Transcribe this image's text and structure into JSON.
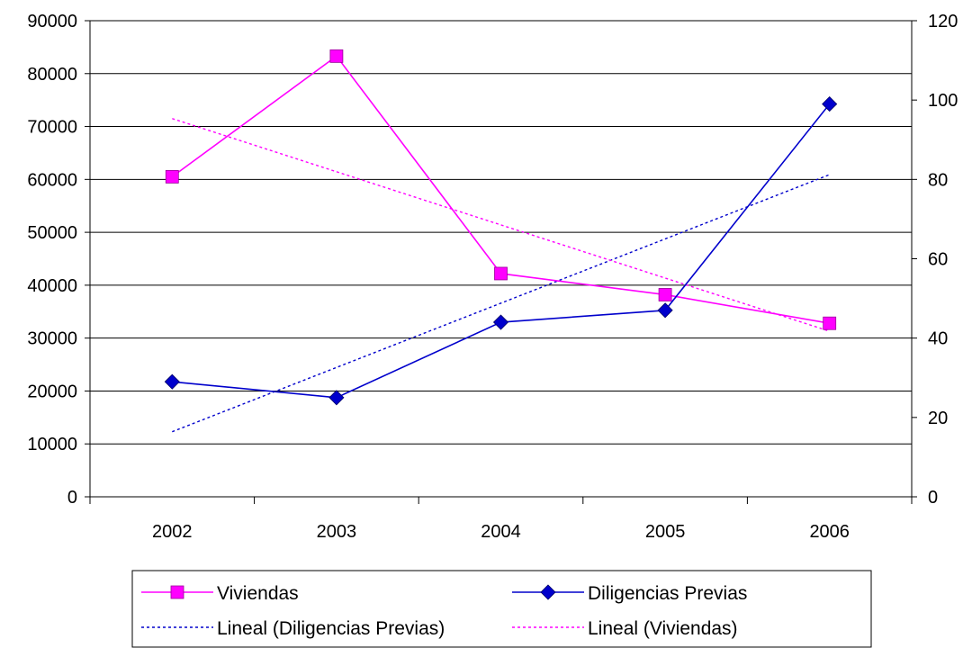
{
  "chart_data": {
    "type": "line",
    "categories": [
      "2002",
      "2003",
      "2004",
      "2005",
      "2006"
    ],
    "y_left": {
      "min": 0,
      "max": 90000,
      "step": 10000,
      "ticks": [
        "0",
        "10000",
        "20000",
        "30000",
        "40000",
        "50000",
        "60000",
        "70000",
        "80000",
        "90000"
      ]
    },
    "y_right": {
      "min": 0,
      "max": 120,
      "step": 20,
      "ticks": [
        "0",
        "20",
        "40",
        "60",
        "80",
        "100",
        "120"
      ]
    },
    "grid": true,
    "legend_position": "bottom",
    "series": [
      {
        "name": "Viviendas",
        "axis": "left",
        "marker": "square",
        "color": "#FF00FF",
        "values": [
          60500,
          83300,
          42200,
          38200,
          32800
        ]
      },
      {
        "name": "Diligencias Previas",
        "axis": "right",
        "marker": "diamond",
        "color": "#0000CC",
        "values": [
          29,
          25,
          44,
          47,
          99
        ]
      }
    ],
    "trendlines": [
      {
        "name": "Lineal (Diligencias Previas)",
        "of": "Diligencias Previas",
        "axis": "right",
        "color": "#0000CC",
        "dashed": true
      },
      {
        "name": "Lineal (Viviendas)",
        "of": "Viviendas",
        "axis": "left",
        "color": "#FF00FF",
        "dashed": true
      }
    ]
  }
}
